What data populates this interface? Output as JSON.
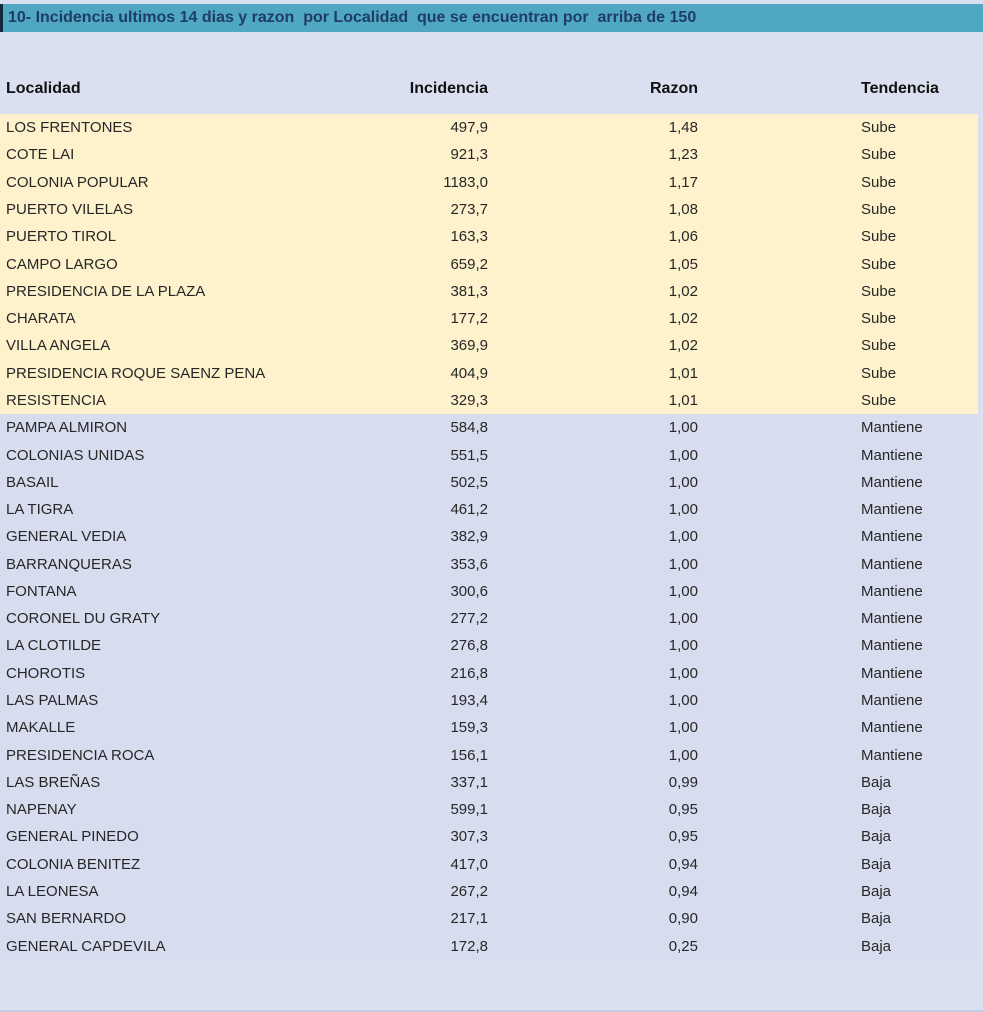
{
  "colors": {
    "page-bg": "#dbe0f1",
    "teal": "#4fa7c2",
    "title-text": "#1f3d63",
    "row-yellow": "#fdf2cc",
    "row-blue": "#d7ddef",
    "cell-text": "#272727",
    "header-text": "#111111",
    "bottom-line": "#c3cce2"
  },
  "title_bar": {
    "text": "10- Incidencia ultimos 14 dias y razon  por Localidad  que se encuentran por  arriba de 150"
  },
  "chart_data": {
    "type": "table",
    "title": "10- Incidencia ultimos 14 dias y razon  por Localidad  que se encuentran por  arriba de 150",
    "columns": [
      "Localidad",
      "Incidencia",
      "Razon",
      "Tendencia"
    ],
    "rows": [
      [
        "LOS FRENTONES",
        "497,9",
        "1,48",
        "Sube"
      ],
      [
        "COTE LAI",
        "921,3",
        "1,23",
        "Sube"
      ],
      [
        "COLONIA POPULAR",
        "1183,0",
        "1,17",
        "Sube"
      ],
      [
        "PUERTO VILELAS",
        "273,7",
        "1,08",
        "Sube"
      ],
      [
        "PUERTO TIROL",
        "163,3",
        "1,06",
        "Sube"
      ],
      [
        "CAMPO LARGO",
        "659,2",
        "1,05",
        "Sube"
      ],
      [
        "PRESIDENCIA DE LA PLAZA",
        "381,3",
        "1,02",
        "Sube"
      ],
      [
        "CHARATA",
        "177,2",
        "1,02",
        "Sube"
      ],
      [
        "VILLA ANGELA",
        "369,9",
        "1,02",
        "Sube"
      ],
      [
        "PRESIDENCIA ROQUE SAENZ PENA",
        "404,9",
        "1,01",
        "Sube"
      ],
      [
        "RESISTENCIA",
        "329,3",
        "1,01",
        "Sube"
      ],
      [
        "PAMPA ALMIRON",
        "584,8",
        "1,00",
        "Mantiene"
      ],
      [
        "COLONIAS UNIDAS",
        "551,5",
        "1,00",
        "Mantiene"
      ],
      [
        "BASAIL",
        "502,5",
        "1,00",
        "Mantiene"
      ],
      [
        "LA TIGRA",
        "461,2",
        "1,00",
        "Mantiene"
      ],
      [
        "GENERAL VEDIA",
        "382,9",
        "1,00",
        "Mantiene"
      ],
      [
        "BARRANQUERAS",
        "353,6",
        "1,00",
        "Mantiene"
      ],
      [
        "FONTANA",
        "300,6",
        "1,00",
        "Mantiene"
      ],
      [
        "CORONEL DU GRATY",
        "277,2",
        "1,00",
        "Mantiene"
      ],
      [
        "LA CLOTILDE",
        "276,8",
        "1,00",
        "Mantiene"
      ],
      [
        "CHOROTIS",
        "216,8",
        "1,00",
        "Mantiene"
      ],
      [
        "LAS PALMAS",
        "193,4",
        "1,00",
        "Mantiene"
      ],
      [
        "MAKALLE",
        "159,3",
        "1,00",
        "Mantiene"
      ],
      [
        "PRESIDENCIA ROCA",
        "156,1",
        "1,00",
        "Mantiene"
      ],
      [
        "LAS BREÑAS",
        "337,1",
        "0,99",
        "Baja"
      ],
      [
        "NAPENAY",
        "599,1",
        "0,95",
        "Baja"
      ],
      [
        "GENERAL PINEDO",
        "307,3",
        "0,95",
        "Baja"
      ],
      [
        "COLONIA BENITEZ",
        "417,0",
        "0,94",
        "Baja"
      ],
      [
        "LA LEONESA",
        "267,2",
        "0,94",
        "Baja"
      ],
      [
        "SAN BERNARDO",
        "217,1",
        "0,90",
        "Baja"
      ],
      [
        "GENERAL CAPDEVILA",
        "172,8",
        "0,25",
        "Baja"
      ]
    ],
    "layout": {
      "trend_groups": {
        "Sube": 11,
        "Mantiene": 13,
        "Baja": 7
      },
      "sube_row_color": "#fdf2cc",
      "mantiene_baja_row_color": "#d7ddef"
    }
  }
}
